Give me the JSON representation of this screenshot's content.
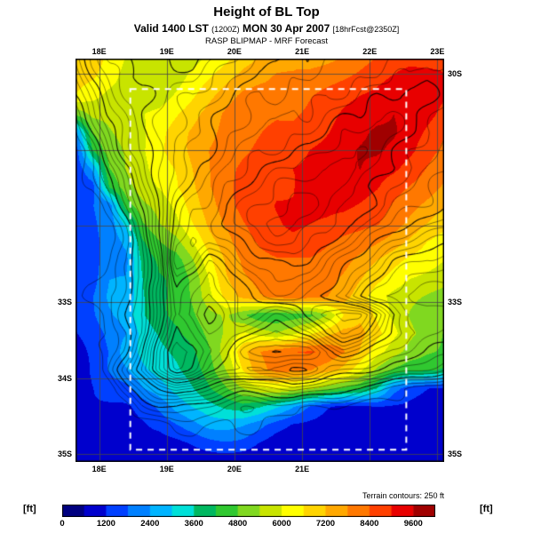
{
  "header": {
    "title": "Height of BL Top",
    "valid_time": "Valid 1400 LST",
    "valid_zulu": "(1200Z)",
    "valid_date": "MON 30 Apr 2007",
    "valid_fcst": "[18hrFcst@2350Z]",
    "model_line": "RASP BLIPMAP - MRF Forecast"
  },
  "footer": {
    "units": "[ft]",
    "terrain_note": "Terrain contours: 250 ft",
    "scale_ticks": [
      0,
      1200,
      2400,
      3600,
      4800,
      6000,
      7200,
      8400,
      9600
    ]
  },
  "map": {
    "lon_min": 17.65,
    "lon_max": 23.1,
    "lat_min": 29.8,
    "lat_max": 35.1,
    "grid_lons": [
      18,
      19,
      20,
      21,
      22,
      23
    ],
    "grid_lats": [
      30,
      31,
      32,
      33,
      34,
      35
    ],
    "top_labels": [
      "18E",
      "19E",
      "20E",
      "21E",
      "22E",
      "23E"
    ],
    "bottom_labels": [
      "18E",
      "19E",
      "20E",
      "21E"
    ],
    "left_labels": [
      {
        "lat": 33,
        "text": "33S"
      },
      {
        "lat": 34,
        "text": "34S"
      },
      {
        "lat": 35,
        "text": "35S"
      }
    ],
    "right_labels": [
      {
        "lat": 30,
        "text": "30S"
      },
      {
        "lat": 33,
        "text": "33S"
      },
      {
        "lat": 35,
        "text": "35S"
      }
    ],
    "dashed_box": {
      "lon1": 18.46,
      "lat1": 30.2,
      "lon2": 22.54,
      "lat2": 34.94
    }
  },
  "chart_data": {
    "type": "heatmap",
    "title": "Height of BL Top",
    "units": "ft",
    "lon_range": [
      17.65,
      23.1
    ],
    "lat_range_south": [
      29.8,
      35.1
    ],
    "fill_bin_size_ft": 600,
    "colorbar_ticks_ft": [
      0,
      1200,
      2400,
      3600,
      4800,
      6000,
      7200,
      8400,
      9600
    ],
    "palette_colors": [
      "#000080",
      "#0000cd",
      "#0040ff",
      "#0080ff",
      "#00b4ff",
      "#00e0d8",
      "#00b860",
      "#30c830",
      "#80d820",
      "#c8e400",
      "#ffff00",
      "#ffd400",
      "#ffa800",
      "#ff7800",
      "#ff4000",
      "#e80000",
      "#a00000"
    ],
    "terrain_contour_interval_ft": 250,
    "bl_top_ft": [
      [
        7000,
        6800,
        6400,
        6000,
        5800,
        5600,
        5600,
        5800,
        6200,
        6600,
        7000,
        7200,
        7400,
        7600,
        7600,
        7800,
        8000,
        8200,
        8400,
        8600,
        8800,
        8800,
        9000
      ],
      [
        6800,
        6600,
        6200,
        5800,
        5600,
        5600,
        5800,
        6200,
        6600,
        7000,
        7400,
        7600,
        7800,
        7800,
        8000,
        8200,
        8400,
        8600,
        8800,
        9000,
        9200,
        9200,
        9000
      ],
      [
        6600,
        6200,
        5800,
        5600,
        5600,
        5800,
        6200,
        6600,
        7000,
        7400,
        7800,
        8000,
        8000,
        8200,
        8400,
        8600,
        8800,
        9000,
        9200,
        9400,
        9400,
        9200,
        9000
      ],
      [
        5000,
        5600,
        5600,
        5800,
        6000,
        6200,
        6600,
        7000,
        7400,
        7800,
        8000,
        8200,
        8400,
        8400,
        8600,
        8800,
        9000,
        9200,
        9400,
        9600,
        9400,
        9200,
        8800
      ],
      [
        2200,
        4800,
        5400,
        5800,
        6000,
        6400,
        6800,
        7200,
        7600,
        8000,
        8200,
        8400,
        8600,
        8600,
        8800,
        9000,
        9200,
        9400,
        9600,
        9600,
        9400,
        9000,
        8600
      ],
      [
        1400,
        4200,
        5200,
        5600,
        6000,
        6400,
        6800,
        7200,
        7800,
        8200,
        8400,
        8600,
        8800,
        8800,
        9000,
        9200,
        9400,
        9600,
        9600,
        9400,
        9200,
        8800,
        8400
      ],
      [
        1400,
        2600,
        4800,
        5400,
        5800,
        6200,
        6600,
        7200,
        7800,
        8200,
        8600,
        8800,
        8800,
        9000,
        9000,
        9200,
        9400,
        9600,
        9400,
        9200,
        8800,
        8400,
        8000
      ],
      [
        1400,
        1600,
        4200,
        5000,
        5600,
        6000,
        6600,
        7200,
        7800,
        8200,
        8600,
        8800,
        9000,
        9000,
        9200,
        9200,
        9400,
        9400,
        9200,
        8800,
        8400,
        8000,
        7600
      ],
      [
        1400,
        1800,
        2000,
        4400,
        5200,
        5600,
        6200,
        7000,
        7600,
        8200,
        8600,
        8800,
        9000,
        9000,
        9200,
        9200,
        9200,
        9000,
        8800,
        8400,
        8000,
        7600,
        7200
      ],
      [
        1400,
        1600,
        2000,
        3200,
        4800,
        5400,
        5800,
        6600,
        7400,
        8000,
        8400,
        8600,
        8800,
        9000,
        9000,
        9000,
        8800,
        8600,
        8400,
        8000,
        7600,
        7200,
        6800
      ],
      [
        1200,
        1500,
        2000,
        2600,
        4200,
        4800,
        5200,
        6000,
        7000,
        7600,
        8200,
        8400,
        8600,
        8800,
        8800,
        8600,
        8400,
        8200,
        7800,
        7400,
        7000,
        6600,
        6400
      ],
      [
        1200,
        1500,
        2200,
        2200,
        3800,
        4400,
        4600,
        5400,
        6400,
        7200,
        7800,
        8200,
        8400,
        8400,
        8400,
        8200,
        8000,
        7600,
        7200,
        6800,
        6400,
        6200,
        6000
      ],
      [
        1300,
        1600,
        2400,
        2400,
        3600,
        4200,
        4400,
        5000,
        6000,
        7000,
        7600,
        8000,
        8200,
        8200,
        8200,
        8000,
        7600,
        7200,
        6800,
        6400,
        6000,
        5800,
        5600
      ],
      [
        1400,
        1800,
        2600,
        2600,
        3600,
        4000,
        4400,
        4800,
        5800,
        6800,
        7400,
        7800,
        8000,
        8200,
        8000,
        7800,
        7400,
        6800,
        6200,
        5800,
        5600,
        5400,
        5200
      ],
      [
        1300,
        1700,
        2400,
        2800,
        3600,
        4000,
        4200,
        4600,
        5200,
        5600,
        5000,
        4400,
        4200,
        4400,
        4600,
        5400,
        6600,
        7000,
        6400,
        5800,
        5400,
        5200,
        5000
      ],
      [
        1200,
        1500,
        2000,
        2400,
        3200,
        3600,
        4000,
        4400,
        5000,
        5600,
        6200,
        5800,
        5400,
        5800,
        6400,
        7000,
        7400,
        7400,
        6800,
        6200,
        5600,
        5200,
        4800
      ],
      [
        1100,
        1400,
        1800,
        2600,
        3000,
        3400,
        3800,
        4200,
        4800,
        5800,
        7000,
        7800,
        8200,
        8400,
        8400,
        8200,
        7800,
        7200,
        6400,
        5800,
        5200,
        4800,
        4600
      ],
      [
        1000,
        1300,
        1800,
        2200,
        2800,
        3200,
        3600,
        4000,
        4600,
        5400,
        6600,
        7600,
        8000,
        8000,
        7800,
        7400,
        7000,
        6200,
        5400,
        4800,
        4400,
        4200,
        4000
      ],
      [
        900,
        1100,
        1400,
        1600,
        2400,
        2800,
        3200,
        3600,
        4200,
        4800,
        5400,
        5800,
        6000,
        5800,
        5600,
        5200,
        4800,
        4400,
        3600,
        2000,
        1400,
        1200,
        1100
      ],
      [
        900,
        1000,
        1100,
        1200,
        1500,
        2000,
        2600,
        3000,
        3400,
        3800,
        4000,
        3600,
        3000,
        2400,
        1800,
        1400,
        1200,
        1100,
        1100,
        1000,
        1000,
        1000,
        1000
      ],
      [
        800,
        900,
        1000,
        1100,
        1200,
        1400,
        1800,
        2200,
        2600,
        2600,
        2400,
        2000,
        1500,
        1200,
        1100,
        1000,
        1000,
        900,
        900,
        900,
        900,
        900,
        900
      ],
      [
        800,
        800,
        900,
        900,
        1000,
        1000,
        1100,
        1300,
        1500,
        1600,
        1500,
        1200,
        1000,
        1000,
        900,
        900,
        900,
        900,
        900,
        900,
        900,
        900,
        900
      ],
      [
        700,
        700,
        700,
        700,
        700,
        700,
        700,
        700,
        700,
        700,
        700,
        700,
        700,
        700,
        700,
        700,
        700,
        700,
        700,
        700,
        700,
        700,
        700
      ]
    ],
    "terrain_ft": [
      [
        1500,
        2200,
        2800,
        3000,
        3200,
        3200,
        3000,
        3000,
        3200,
        3400,
        3600,
        3800,
        3800,
        4000,
        4000,
        4200,
        4200,
        4400,
        4400,
        4600,
        4600,
        4800,
        4800
      ],
      [
        1200,
        2000,
        2600,
        3000,
        3200,
        3200,
        3200,
        3200,
        3400,
        3600,
        3800,
        4000,
        4000,
        4200,
        4200,
        4400,
        4400,
        4600,
        4600,
        4800,
        4800,
        5000,
        4800
      ],
      [
        1000,
        1800,
        2400,
        2800,
        3000,
        3200,
        3400,
        3400,
        3600,
        3800,
        4000,
        4200,
        4200,
        4400,
        4400,
        4600,
        4600,
        4800,
        5000,
        5000,
        5200,
        5000,
        4800
      ],
      [
        600,
        1400,
        2200,
        2600,
        3000,
        3200,
        3400,
        3600,
        3800,
        4000,
        4200,
        4400,
        4400,
        4600,
        4600,
        4800,
        5000,
        5000,
        5200,
        5200,
        5000,
        4800,
        4600
      ],
      [
        300,
        1000,
        1800,
        2400,
        2800,
        3200,
        3400,
        3600,
        3800,
        4200,
        4400,
        4600,
        4600,
        4800,
        4800,
        5000,
        5200,
        5200,
        5400,
        5200,
        5000,
        4800,
        4600
      ],
      [
        0,
        600,
        1400,
        2200,
        2800,
        3200,
        3400,
        3800,
        4000,
        4400,
        4600,
        4800,
        4800,
        5000,
        5000,
        5200,
        5400,
        5400,
        5200,
        5000,
        4800,
        4600,
        4400
      ],
      [
        0,
        300,
        1000,
        1800,
        2600,
        3200,
        3600,
        4000,
        4200,
        4600,
        4800,
        5000,
        5200,
        5200,
        5400,
        5400,
        5600,
        5400,
        5200,
        5000,
        4800,
        4600,
        4400
      ],
      [
        0,
        200,
        800,
        1600,
        2400,
        3200,
        3800,
        4200,
        4400,
        4800,
        5000,
        5200,
        5400,
        5600,
        5600,
        5600,
        5400,
        5200,
        5000,
        4800,
        4600,
        4400,
        4200
      ],
      [
        0,
        0,
        500,
        1200,
        2200,
        3200,
        4000,
        4400,
        4600,
        5000,
        5200,
        5400,
        5600,
        5800,
        5800,
        5600,
        5400,
        5200,
        5000,
        4600,
        4400,
        4200,
        4000
      ],
      [
        0,
        0,
        200,
        900,
        1800,
        3000,
        4200,
        4600,
        4600,
        5000,
        5400,
        5600,
        5800,
        5800,
        5600,
        5400,
        5200,
        5000,
        4600,
        4200,
        4000,
        3800,
        3600
      ],
      [
        0,
        0,
        200,
        700,
        1500,
        2800,
        4400,
        4800,
        4400,
        4600,
        5000,
        5400,
        5600,
        5600,
        5400,
        5200,
        4800,
        4400,
        4000,
        3600,
        3400,
        3200,
        3000
      ],
      [
        0,
        0,
        200,
        600,
        1400,
        2600,
        4600,
        4400,
        3800,
        4200,
        4600,
        5000,
        5200,
        5200,
        5000,
        4600,
        4200,
        3800,
        3400,
        3000,
        2800,
        2600,
        2600
      ],
      [
        0,
        100,
        300,
        700,
        1300,
        2400,
        4200,
        3800,
        3400,
        3800,
        4200,
        4600,
        4800,
        4800,
        4600,
        4200,
        3800,
        3400,
        3000,
        2600,
        2400,
        2400,
        2400
      ],
      [
        100,
        200,
        400,
        800,
        1400,
        2600,
        4000,
        3600,
        3200,
        3600,
        4000,
        4200,
        4400,
        4400,
        4200,
        3800,
        3400,
        3000,
        2600,
        2400,
        2200,
        2200,
        2200
      ],
      [
        0,
        100,
        300,
        900,
        1600,
        2800,
        3800,
        3400,
        3000,
        3400,
        3800,
        3600,
        3200,
        3400,
        4000,
        4600,
        5000,
        4800,
        4000,
        3200,
        2600,
        2400,
        2400
      ],
      [
        0,
        100,
        300,
        800,
        1600,
        3000,
        4200,
        3800,
        3200,
        3400,
        3200,
        2800,
        2600,
        2800,
        3200,
        4000,
        4600,
        4400,
        3600,
        3000,
        2600,
        2400,
        2200
      ],
      [
        0,
        100,
        400,
        1000,
        2000,
        3400,
        4600,
        4200,
        3400,
        3000,
        2400,
        2000,
        1800,
        2000,
        2200,
        2800,
        3400,
        3200,
        2800,
        2400,
        2200,
        2000,
        1800
      ],
      [
        0,
        0,
        600,
        1400,
        2400,
        3600,
        4200,
        3800,
        3200,
        2800,
        2600,
        2800,
        3000,
        3200,
        3000,
        2600,
        2400,
        2200,
        2000,
        1800,
        1600,
        1400,
        1200
      ],
      [
        0,
        0,
        0,
        800,
        1400,
        2000,
        2400,
        2200,
        1800,
        1400,
        1200,
        1400,
        1600,
        1800,
        1600,
        1400,
        1200,
        1000,
        600,
        300,
        100,
        0,
        0
      ],
      [
        0,
        0,
        0,
        100,
        600,
        900,
        1000,
        900,
        700,
        500,
        400,
        400,
        400,
        400,
        300,
        200,
        100,
        0,
        0,
        0,
        0,
        0,
        0
      ],
      [
        0,
        0,
        0,
        0,
        0,
        100,
        300,
        400,
        400,
        300,
        300,
        300,
        200,
        100,
        0,
        0,
        0,
        0,
        0,
        0,
        0,
        0,
        0
      ],
      [
        0,
        0,
        0,
        0,
        0,
        0,
        100,
        200,
        200,
        200,
        100,
        100,
        0,
        0,
        0,
        0,
        0,
        0,
        0,
        0,
        0,
        0,
        0
      ],
      [
        0,
        0,
        0,
        0,
        0,
        0,
        0,
        0,
        0,
        0,
        0,
        0,
        0,
        0,
        0,
        0,
        0,
        0,
        0,
        0,
        0,
        0,
        0
      ]
    ]
  }
}
